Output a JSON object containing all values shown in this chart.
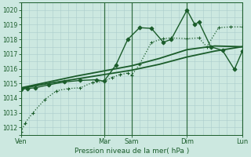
{
  "xlabel": "Pression niveau de la mer( hPa )",
  "bg_color": "#cce8e0",
  "grid_color": "#aacccc",
  "line_color": "#1a5c2a",
  "ylim": [
    1011.5,
    1020.5
  ],
  "xlim": [
    0,
    28
  ],
  "day_ticks": [
    0,
    10.5,
    14,
    21,
    28
  ],
  "day_labels": [
    "Ven",
    "Mar",
    "Sam",
    "Dim",
    "Lun"
  ],
  "series": [
    {
      "x": [
        0.0,
        0.5,
        1.5,
        3.0,
        4.5,
        6.0,
        7.5,
        9.0,
        10.5,
        11.5,
        12.5,
        13.5,
        14.0,
        15.0,
        16.5,
        18.0,
        19.0,
        21.0,
        22.5,
        23.5,
        25.0,
        26.5,
        28.0
      ],
      "y": [
        1011.7,
        1012.3,
        1013.0,
        1013.9,
        1014.5,
        1014.65,
        1014.7,
        1015.05,
        1015.15,
        1015.4,
        1015.6,
        1015.7,
        1015.55,
        1016.3,
        1017.8,
        1018.05,
        1018.1,
        1018.05,
        1018.1,
        1017.5,
        1018.8,
        1018.85,
        1018.85
      ],
      "style": "dotted",
      "marker": "+",
      "markersize": 3.5,
      "linewidth": 0.9
    },
    {
      "x": [
        0.0,
        0.8,
        1.8,
        3.5,
        5.5,
        7.5,
        9.5,
        10.5,
        12.0,
        13.5,
        15.0,
        16.5,
        18.0,
        19.0,
        21.0,
        22.0,
        22.5,
        24.0,
        25.5,
        27.0,
        28.0
      ],
      "y": [
        1014.6,
        1014.65,
        1014.7,
        1014.9,
        1015.1,
        1015.2,
        1015.25,
        1015.15,
        1016.25,
        1018.0,
        1018.8,
        1018.75,
        1017.8,
        1018.0,
        1020.0,
        1019.0,
        1019.2,
        1017.5,
        1017.25,
        1015.95,
        1017.2
      ],
      "style": "solid",
      "marker": "D",
      "markersize": 2.5,
      "linewidth": 1.0
    },
    {
      "x": [
        0.0,
        3.5,
        7.0,
        10.5,
        14.0,
        17.5,
        21.0,
        24.5,
        28.0
      ],
      "y": [
        1014.65,
        1015.0,
        1015.3,
        1015.6,
        1015.9,
        1016.3,
        1016.8,
        1017.2,
        1017.5
      ],
      "style": "solid",
      "marker": null,
      "markersize": 0,
      "linewidth": 1.3
    },
    {
      "x": [
        0.0,
        3.5,
        7.0,
        10.5,
        14.0,
        17.5,
        21.0,
        24.5,
        28.0
      ],
      "y": [
        1014.7,
        1015.1,
        1015.5,
        1015.85,
        1016.2,
        1016.7,
        1017.3,
        1017.55,
        1017.5
      ],
      "style": "solid",
      "marker": null,
      "markersize": 0,
      "linewidth": 1.3
    }
  ]
}
